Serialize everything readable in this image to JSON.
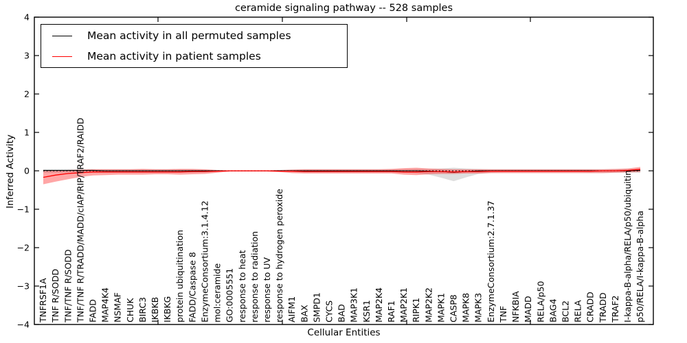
{
  "chart_data": {
    "type": "line",
    "title": "ceramide signaling pathway -- 528 samples",
    "xlabel": "Cellular Entities",
    "ylabel": "Inferred Activity",
    "ylim": [
      -4,
      4
    ],
    "ytick_values": [
      4,
      3,
      2,
      1,
      0,
      -1,
      -2,
      -3,
      -4
    ],
    "ytick_labels": [
      "4",
      "3",
      "2",
      "1",
      "0",
      "−1",
      "−2",
      "−3",
      "−4"
    ],
    "grid": false,
    "legend_position": "upper left",
    "zero_line": {
      "style": "dotted",
      "color": "#000000",
      "y": 0
    },
    "colors": {
      "permuted_line": "#000000",
      "permuted_band": "#8a8a8a",
      "patient_line": "#ff0000",
      "patient_band": "#ff0000"
    },
    "categories": [
      "TNFRSF1A",
      "TNF R/SODD",
      "TNF/TNF R/SODD",
      "TNF/TNF R/TRADD/MADD/cIAP/RIP/TRAF2/RAIDD",
      "FADD",
      "MAP4K4",
      "NSMAF",
      "CHUK",
      "BIRC3",
      "IKBKB",
      "IKBKG",
      "protein ubiquitination",
      "FADD/Caspase 8",
      "EnzymeConsortium:3.1.4.12",
      "mol:ceramide",
      "GO:0005551",
      "response to heat",
      "response to radiation",
      "response to UV",
      "response to hydrogen peroxide",
      "AIFM1",
      "BAX",
      "SMPD1",
      "CYCS",
      "BAD",
      "MAP3K1",
      "KSR1",
      "MAP2K4",
      "RAF1",
      "MAP2K1",
      "RIPK1",
      "MAP2K2",
      "MAPK1",
      "CASP8",
      "MAPK8",
      "MAPK3",
      "EnzymeConsortium:2.7.1.37",
      "TNF",
      "NFKBIA",
      "MADD",
      "RELA/p50",
      "BAG4",
      "BCL2",
      "RELA",
      "CRADD",
      "TRADD",
      "TRAF2",
      "I-kappa-B-alpha/RELA/p50/ubiquitin",
      "p50/RELA/I-kappa-B-alpha"
    ],
    "series": [
      {
        "name": "Mean activity in all permuted samples",
        "color": "#000000",
        "values": [
          0.01,
          0.01,
          0.01,
          0.01,
          0.01,
          0,
          0,
          0,
          0,
          0,
          0,
          0,
          0,
          0,
          0,
          0,
          0,
          0,
          0,
          0,
          0,
          0,
          0,
          0,
          0,
          0,
          0,
          0,
          0,
          0,
          0,
          -0.01,
          -0.02,
          -0.04,
          -0.02,
          0,
          0,
          0,
          0,
          0,
          0,
          0,
          0,
          0,
          0,
          0,
          0,
          0,
          0.01
        ],
        "band_lower": [
          -0.05,
          -0.05,
          -0.04,
          -0.04,
          -0.04,
          -0.04,
          -0.04,
          -0.04,
          -0.04,
          -0.04,
          -0.04,
          -0.04,
          -0.04,
          -0.03,
          -0.02,
          -0.01,
          -0.01,
          -0.01,
          -0.01,
          -0.02,
          -0.03,
          -0.04,
          -0.04,
          -0.04,
          -0.04,
          -0.04,
          -0.04,
          -0.04,
          -0.04,
          -0.05,
          -0.06,
          -0.1,
          -0.18,
          -0.27,
          -0.17,
          -0.08,
          -0.05,
          -0.04,
          -0.04,
          -0.04,
          -0.04,
          -0.04,
          -0.04,
          -0.04,
          -0.05,
          -0.05,
          -0.05,
          -0.05,
          -0.05
        ],
        "band_upper": [
          0.04,
          0.04,
          0.04,
          0.04,
          0.04,
          0.04,
          0.04,
          0.04,
          0.04,
          0.04,
          0.04,
          0.04,
          0.04,
          0.03,
          0.02,
          0.01,
          0.01,
          0.01,
          0.01,
          0.02,
          0.03,
          0.04,
          0.04,
          0.04,
          0.04,
          0.04,
          0.04,
          0.04,
          0.04,
          0.04,
          0.05,
          0.05,
          0.06,
          0.08,
          0.06,
          0.05,
          0.04,
          0.04,
          0.04,
          0.04,
          0.04,
          0.04,
          0.04,
          0.04,
          0.04,
          0.04,
          0.04,
          0.05,
          0.05
        ]
      },
      {
        "name": "Mean activity in patient samples",
        "color": "#ff0000",
        "values": [
          -0.17,
          -0.11,
          -0.07,
          -0.05,
          -0.03,
          -0.03,
          -0.03,
          -0.03,
          -0.03,
          -0.03,
          -0.03,
          -0.03,
          -0.02,
          -0.02,
          -0.01,
          0,
          0,
          0,
          0,
          -0.01,
          -0.01,
          -0.02,
          -0.02,
          -0.02,
          -0.02,
          -0.02,
          -0.02,
          -0.02,
          -0.02,
          -0.03,
          -0.03,
          -0.02,
          -0.02,
          -0.03,
          -0.02,
          -0.02,
          -0.01,
          -0.01,
          -0.01,
          -0.01,
          -0.01,
          -0.01,
          -0.01,
          -0.01,
          -0.01,
          0,
          0,
          0.01,
          0.04
        ],
        "band_lower": [
          -0.35,
          -0.28,
          -0.22,
          -0.16,
          -0.12,
          -0.11,
          -0.1,
          -0.1,
          -0.1,
          -0.09,
          -0.09,
          -0.1,
          -0.09,
          -0.08,
          -0.05,
          -0.02,
          -0.02,
          -0.02,
          -0.02,
          -0.03,
          -0.06,
          -0.07,
          -0.07,
          -0.07,
          -0.07,
          -0.07,
          -0.07,
          -0.07,
          -0.07,
          -0.1,
          -0.11,
          -0.09,
          -0.08,
          -0.08,
          -0.07,
          -0.07,
          -0.06,
          -0.06,
          -0.06,
          -0.06,
          -0.06,
          -0.06,
          -0.06,
          -0.06,
          -0.06,
          -0.06,
          -0.05,
          -0.04,
          -0.03
        ],
        "band_upper": [
          0.02,
          0.01,
          0.02,
          0.03,
          0.04,
          0.04,
          0.04,
          0.04,
          0.05,
          0.04,
          0.04,
          0.05,
          0.05,
          0.04,
          0.02,
          0.01,
          0.01,
          0.01,
          0.01,
          0.02,
          0.03,
          0.04,
          0.04,
          0.04,
          0.04,
          0.04,
          0.04,
          0.04,
          0.05,
          0.07,
          0.08,
          0.06,
          0.05,
          0.04,
          0.04,
          0.04,
          0.04,
          0.04,
          0.04,
          0.04,
          0.04,
          0.04,
          0.04,
          0.04,
          0.04,
          0.04,
          0.05,
          0.06,
          0.1
        ]
      }
    ]
  }
}
